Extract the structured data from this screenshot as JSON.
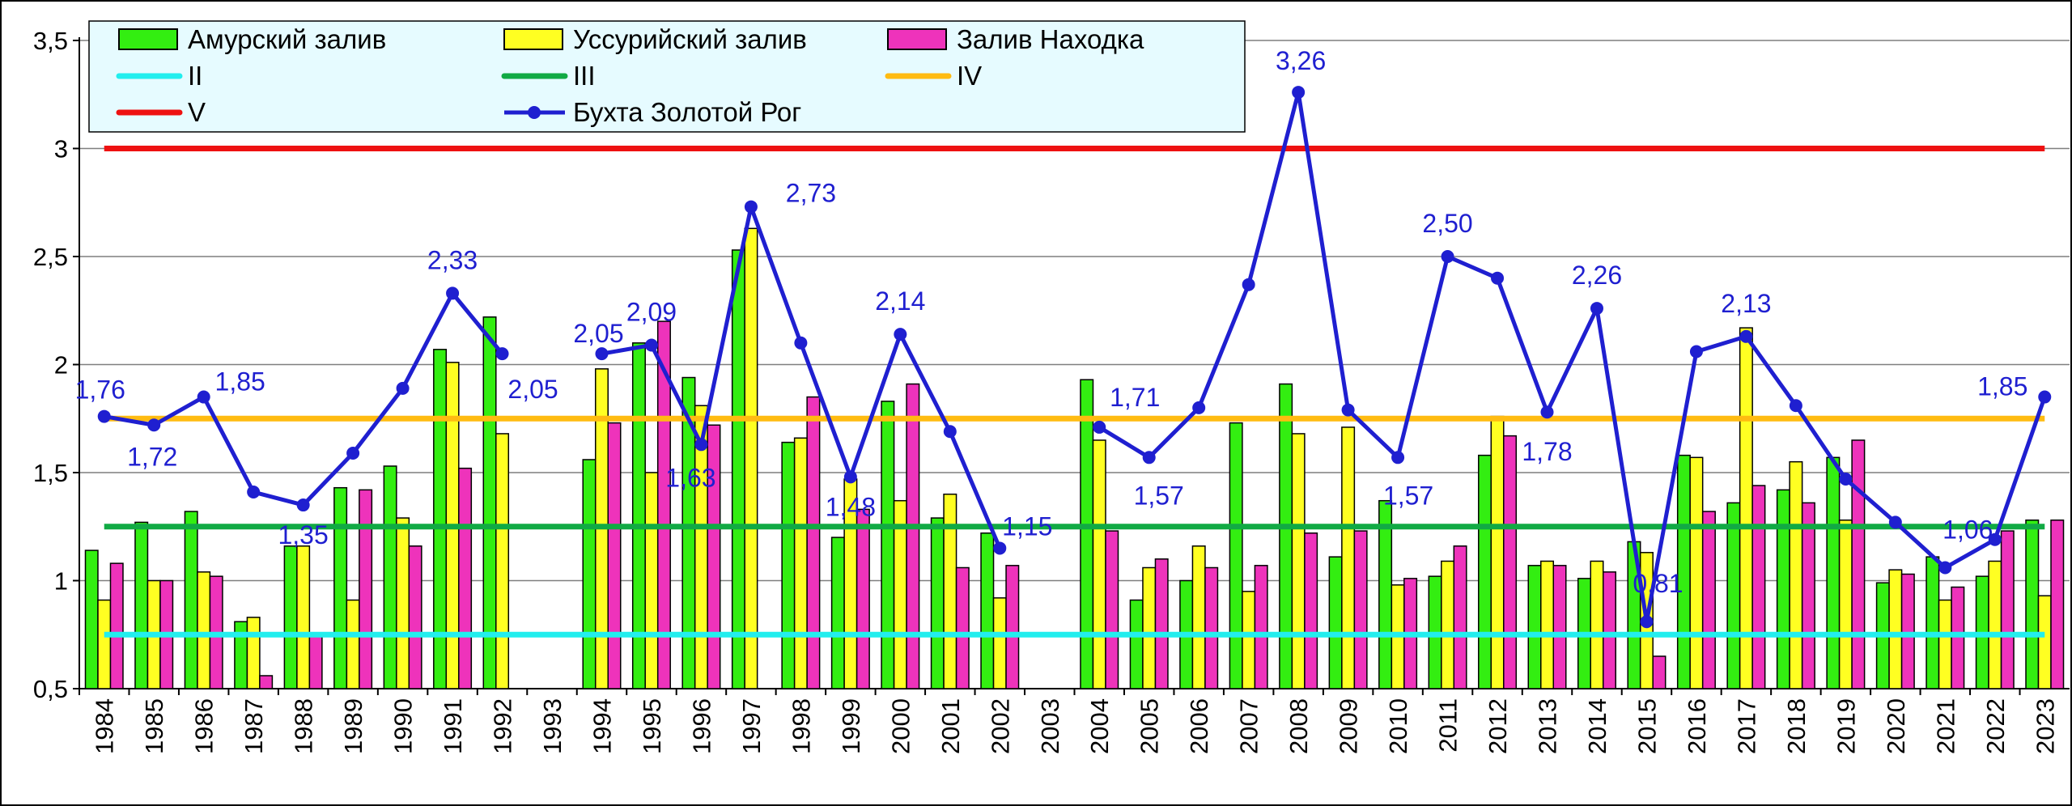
{
  "chart_data": {
    "type": "bar",
    "categories": [
      "1984",
      "1985",
      "1986",
      "1987",
      "1988",
      "1989",
      "1990",
      "1991",
      "1992",
      "1993",
      "1994",
      "1995",
      "1996",
      "1997",
      "1998",
      "1999",
      "2000",
      "2001",
      "2002",
      "2003",
      "2004",
      "2005",
      "2006",
      "2007",
      "2008",
      "2009",
      "2010",
      "2011",
      "2012",
      "2013",
      "2014",
      "2015",
      "2016",
      "2017",
      "2018",
      "2019",
      "2020",
      "2021",
      "2022",
      "2023"
    ],
    "ylim": [
      0.5,
      3.5
    ],
    "yticks": [
      "0,5",
      "1",
      "1,5",
      "2",
      "2,5",
      "3",
      "3,5"
    ],
    "ytick_values": [
      0.5,
      1,
      1.5,
      2,
      2.5,
      3,
      3.5
    ],
    "grid": "horizontal",
    "legend_position": "top-left",
    "bar_series": [
      {
        "name": "Амурский залив",
        "color": "#33ee11",
        "values": [
          1.14,
          1.27,
          1.32,
          0.81,
          1.16,
          1.43,
          1.53,
          2.07,
          2.22,
          null,
          1.56,
          2.1,
          1.94,
          2.53,
          1.64,
          1.2,
          1.83,
          1.29,
          1.22,
          null,
          1.93,
          0.91,
          1.0,
          1.73,
          1.91,
          1.11,
          1.37,
          1.02,
          1.58,
          1.07,
          1.01,
          1.18,
          1.58,
          1.36,
          1.42,
          1.57,
          0.99,
          1.11,
          1.02,
          1.28
        ]
      },
      {
        "name": "Уссурийский залив",
        "color": "#ffff22",
        "values": [
          0.91,
          1.0,
          1.04,
          0.83,
          1.16,
          0.91,
          1.29,
          2.01,
          1.68,
          null,
          1.98,
          1.5,
          1.81,
          2.63,
          1.66,
          1.47,
          1.37,
          1.4,
          0.92,
          null,
          1.65,
          1.06,
          1.16,
          0.95,
          1.68,
          1.71,
          0.98,
          1.09,
          1.76,
          1.09,
          1.09,
          1.13,
          1.57,
          2.17,
          1.55,
          1.28,
          1.05,
          0.91,
          1.09,
          0.93
        ]
      },
      {
        "name": "Залив Находка",
        "color": "#ee33bb",
        "values": [
          1.08,
          1.0,
          1.02,
          0.56,
          0.75,
          1.42,
          1.16,
          1.52,
          null,
          null,
          1.73,
          2.2,
          1.72,
          null,
          1.85,
          1.33,
          1.91,
          1.06,
          1.07,
          null,
          1.23,
          1.1,
          1.06,
          1.07,
          1.22,
          1.23,
          1.01,
          1.16,
          1.67,
          1.07,
          1.04,
          0.65,
          1.32,
          1.44,
          1.36,
          1.65,
          1.03,
          0.97,
          1.23,
          1.28
        ]
      }
    ],
    "reference_lines": [
      {
        "name": "II",
        "color": "#22eeee",
        "value": 0.75
      },
      {
        "name": "III",
        "color": "#11aa44",
        "value": 1.25
      },
      {
        "name": "IV",
        "color": "#ffbb11",
        "value": 1.75
      },
      {
        "name": "V",
        "color": "#ee1111",
        "value": 3.0
      }
    ],
    "line_series": {
      "name": "Бухта Золотой Рог",
      "color": "#1f1fd0",
      "values": [
        1.76,
        1.72,
        1.85,
        1.41,
        1.35,
        1.59,
        1.89,
        2.33,
        2.05,
        null,
        2.05,
        2.09,
        1.63,
        2.73,
        2.1,
        1.48,
        2.14,
        1.69,
        1.15,
        null,
        1.71,
        1.57,
        1.8,
        2.37,
        3.26,
        1.79,
        1.57,
        2.5,
        2.4,
        1.78,
        2.26,
        0.81,
        2.06,
        2.13,
        1.81,
        1.47,
        1.27,
        1.06,
        1.19,
        1.85
      ],
      "data_labels": [
        {
          "category": "1984",
          "text": "1,76"
        },
        {
          "category": "1985",
          "text": "1,72"
        },
        {
          "category": "1986",
          "text": "1,85"
        },
        {
          "category": "1988",
          "text": "1,35"
        },
        {
          "category": "1991",
          "text": "2,33"
        },
        {
          "category": "1992",
          "text": "2,05"
        },
        {
          "category": "1994",
          "text": "2,05"
        },
        {
          "category": "1995",
          "text": "2,09"
        },
        {
          "category": "1996",
          "text": "1,63"
        },
        {
          "category": "1997",
          "text": "2,73"
        },
        {
          "category": "1999",
          "text": "1,48"
        },
        {
          "category": "2000",
          "text": "2,14"
        },
        {
          "category": "2002",
          "text": "1,15"
        },
        {
          "category": "2004",
          "text": "1,71"
        },
        {
          "category": "2005",
          "text": "1,57"
        },
        {
          "category": "2008",
          "text": "3,26"
        },
        {
          "category": "2010",
          "text": "1,57"
        },
        {
          "category": "2011",
          "text": "2,50"
        },
        {
          "category": "2013",
          "text": "1,78"
        },
        {
          "category": "2014",
          "text": "2,26"
        },
        {
          "category": "2015",
          "text": "0,81"
        },
        {
          "category": "2017",
          "text": "2,13"
        },
        {
          "category": "2021",
          "text": "1,06"
        },
        {
          "category": "2023",
          "text": "1,85"
        }
      ]
    },
    "legend": [
      {
        "label": "Амурский залив",
        "kind": "bar",
        "color": "#33ee11"
      },
      {
        "label": "Уссурийский залив",
        "kind": "bar",
        "color": "#ffff22"
      },
      {
        "label": "Залив Находка",
        "kind": "bar",
        "color": "#ee33bb"
      },
      {
        "label": "II",
        "kind": "line",
        "color": "#22eeee"
      },
      {
        "label": "III",
        "kind": "line",
        "color": "#11aa44"
      },
      {
        "label": "IV",
        "kind": "line",
        "color": "#ffbb11"
      },
      {
        "label": "V",
        "kind": "line",
        "color": "#ee1111"
      },
      {
        "label": "Бухта Золотой Рог",
        "kind": "line-marker",
        "color": "#1f1fd0"
      }
    ],
    "legend_frame_color": "#e6fbff"
  }
}
